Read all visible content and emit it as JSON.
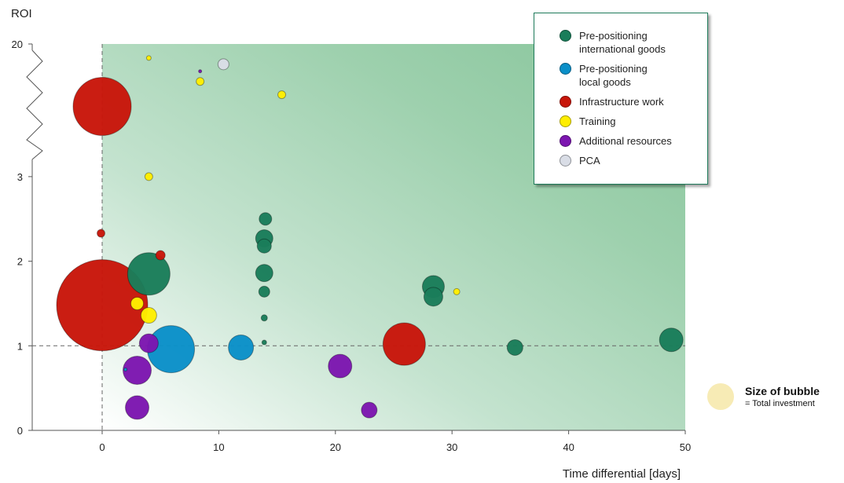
{
  "chart_data": {
    "type": "scatter",
    "subtype": "bubble",
    "title": "",
    "xlabel": "Time differential [days]",
    "ylabel": "ROI",
    "xlim": [
      -6,
      50
    ],
    "x_ticks": [
      0,
      10,
      20,
      30,
      40,
      50
    ],
    "y_axis_break": "broken axis between 3 and 20",
    "y_ticks": [
      {
        "label": "0",
        "value": 0
      },
      {
        "label": "1",
        "value": 1
      },
      {
        "label": "2",
        "value": 2
      },
      {
        "label": "3",
        "value": 3
      },
      {
        "label": "20",
        "value": 20
      }
    ],
    "reference_lines": {
      "x": 0,
      "y": 1,
      "style": "dashed"
    },
    "background": "green gradient, light at bottom-left, darker toward upper-right",
    "grid": false,
    "legend_position": "top-right",
    "series": [
      {
        "name": "Pre-positioning\ninternational goods",
        "color": "#1a7d5a",
        "points": [
          {
            "x": 4,
            "y": 1.85,
            "r": 27
          },
          {
            "x": 14,
            "y": 2.5,
            "r": 8
          },
          {
            "x": 13.9,
            "y": 2.27,
            "r": 11
          },
          {
            "x": 13.9,
            "y": 2.18,
            "r": 9
          },
          {
            "x": 13.9,
            "y": 1.86,
            "r": 11
          },
          {
            "x": 13.9,
            "y": 1.64,
            "r": 7
          },
          {
            "x": 13.9,
            "y": 1.33,
            "r": 4
          },
          {
            "x": 13.9,
            "y": 1.04,
            "r": 3
          },
          {
            "x": 28.4,
            "y": 1.7,
            "r": 14
          },
          {
            "x": 28.4,
            "y": 1.58,
            "r": 12
          },
          {
            "x": 35.4,
            "y": 0.98,
            "r": 10
          },
          {
            "x": 48.8,
            "y": 1.07,
            "r": 15
          }
        ]
      },
      {
        "name": "Pre-positioning\nlocal goods",
        "color": "#0a8fc8",
        "points": [
          {
            "x": 5.9,
            "y": 0.96,
            "r": 30
          },
          {
            "x": 11.9,
            "y": 0.98,
            "r": 16
          },
          {
            "x": 2,
            "y": 0.72,
            "r": 2
          }
        ]
      },
      {
        "name": "Infrastructure work",
        "color": "#c8160a",
        "points": [
          {
            "x": 0,
            "y": 1.48,
            "r": 58
          },
          {
            "x": 0,
            "y": 12.0,
            "r": 37
          },
          {
            "x": 25.9,
            "y": 1.02,
            "r": 27
          },
          {
            "x": -0.1,
            "y": 2.33,
            "r": 5
          },
          {
            "x": 5,
            "y": 2.07,
            "r": 6
          }
        ]
      },
      {
        "name": "Training",
        "color": "#ffee00",
        "points": [
          {
            "x": 4,
            "y": 18.2,
            "r": 3
          },
          {
            "x": 8.4,
            "y": 15.2,
            "r": 5
          },
          {
            "x": 15.4,
            "y": 13.5,
            "r": 5
          },
          {
            "x": 4,
            "y": 3.01,
            "r": 5
          },
          {
            "x": 3,
            "y": 1.5,
            "r": 8
          },
          {
            "x": 4,
            "y": 1.36,
            "r": 10
          },
          {
            "x": 30.4,
            "y": 1.64,
            "r": 4
          }
        ]
      },
      {
        "name": "Additional resources",
        "color": "#7c16b0",
        "points": [
          {
            "x": 4,
            "y": 1.03,
            "r": 12
          },
          {
            "x": 3,
            "y": 0.71,
            "r": 18
          },
          {
            "x": 3,
            "y": 0.27,
            "r": 15
          },
          {
            "x": 20.4,
            "y": 0.76,
            "r": 15
          },
          {
            "x": 22.9,
            "y": 0.24,
            "r": 10
          },
          {
            "x": 8.4,
            "y": 16.5,
            "r": 2
          }
        ]
      },
      {
        "name": "PCA",
        "color": "#d9dde6",
        "points": [
          {
            "x": 10.4,
            "y": 17.4,
            "r": 7
          }
        ]
      }
    ],
    "size_legend": {
      "title": "Size of bubble",
      "subtitle": "= Total investment",
      "color": "#f7ebb5"
    }
  }
}
